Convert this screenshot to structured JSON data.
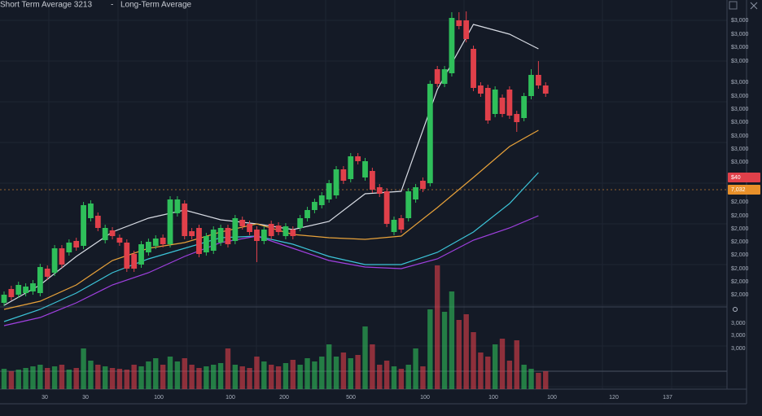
{
  "chart_data": {
    "type": "candlestick",
    "legend": [
      "Short Term Average 3213",
      "Long-Term Average"
    ],
    "up_color": "#2fbf5a",
    "down_color": "#e0404a",
    "ylim": [
      -20,
      370
    ],
    "open": [
      8,
      25,
      18,
      20,
      22,
      20,
      50,
      45,
      75,
      70,
      84,
      78,
      112,
      115,
      85,
      97,
      88,
      82,
      68,
      55,
      70,
      78,
      88,
      80,
      118,
      130,
      96,
      100,
      70,
      72,
      82,
      100,
      84,
      110,
      105,
      98,
      84,
      105,
      103,
      90,
      98,
      100,
      112,
      122,
      128,
      135,
      140,
      172,
      160,
      188,
      162,
      170,
      150,
      145,
      95,
      112,
      112,
      135,
      158,
      155,
      295,
      277,
      290,
      355,
      355,
      320,
      275,
      272,
      240,
      260,
      270,
      240,
      235,
      262,
      288,
      275
    ],
    "high": [
      22,
      29,
      34,
      32,
      36,
      56,
      54,
      79,
      79,
      86,
      88,
      132,
      134,
      119,
      104,
      101,
      92,
      86,
      72,
      84,
      87,
      91,
      92,
      139,
      139,
      134,
      100,
      104,
      94,
      102,
      104,
      104,
      116,
      114,
      109,
      102,
      102,
      109,
      107,
      106,
      102,
      116,
      126,
      136,
      144,
      159,
      176,
      176,
      192,
      192,
      186,
      174,
      154,
      149,
      114,
      116,
      149,
      154,
      162,
      281,
      299,
      299,
      365,
      365,
      366,
      324,
      279,
      276,
      274,
      264,
      274,
      244,
      266,
      295,
      305,
      279
    ],
    "low": [
      4,
      11,
      14,
      16,
      18,
      16,
      36,
      41,
      51,
      66,
      72,
      74,
      108,
      96,
      81,
      86,
      78,
      46,
      46,
      51,
      66,
      74,
      76,
      76,
      114,
      86,
      86,
      64,
      66,
      68,
      78,
      76,
      80,
      98,
      91,
      58,
      80,
      86,
      91,
      86,
      86,
      96,
      108,
      118,
      124,
      131,
      136,
      154,
      156,
      178,
      158,
      143,
      138,
      101,
      91,
      94,
      108,
      131,
      144,
      151,
      273,
      273,
      286,
      344,
      328,
      268,
      261,
      228,
      236,
      236,
      234,
      218,
      231,
      258,
      271,
      261
    ],
    "close": [
      18,
      15,
      30,
      28,
      32,
      52,
      40,
      75,
      55,
      82,
      76,
      128,
      130,
      100,
      100,
      90,
      82,
      50,
      50,
      80,
      83,
      87,
      80,
      135,
      135,
      90,
      90,
      68,
      90,
      98,
      100,
      80,
      112,
      102,
      95,
      84,
      98,
      90,
      95,
      102,
      90,
      112,
      122,
      132,
      140,
      155,
      172,
      158,
      188,
      182,
      182,
      147,
      142,
      105,
      110,
      98,
      145,
      150,
      148,
      277,
      277,
      295,
      358,
      348,
      332,
      272,
      265,
      232,
      270,
      240,
      238,
      230,
      262,
      288,
      275,
      265
    ],
    "volume_ylim": [
      0,
      160
    ],
    "volume": [
      25,
      22,
      24,
      26,
      28,
      30,
      26,
      28,
      30,
      24,
      26,
      50,
      35,
      30,
      28,
      26,
      25,
      24,
      30,
      28,
      34,
      38,
      30,
      40,
      34,
      38,
      30,
      26,
      28,
      30,
      32,
      50,
      30,
      28,
      26,
      40,
      34,
      30,
      28,
      32,
      36,
      30,
      38,
      34,
      40,
      55,
      40,
      45,
      38,
      42,
      77,
      55,
      30,
      35,
      28,
      25,
      30,
      50,
      28,
      98,
      152,
      95,
      120,
      85,
      92,
      70,
      45,
      40,
      55,
      62,
      35,
      60,
      30,
      25,
      20,
      22
    ],
    "series": [
      {
        "color": "#d8dce4",
        "x": [
          0,
          5,
          10,
          15,
          20,
          25,
          30,
          35,
          40,
          45,
          50,
          55,
          60,
          65,
          70,
          74
        ],
        "values": [
          5,
          30,
          65,
          95,
          112,
          122,
          110,
          105,
          98,
          108,
          142,
          145,
          270,
          350,
          338,
          320
        ]
      },
      {
        "color": "#e8a23a",
        "x": [
          0,
          5,
          10,
          15,
          20,
          25,
          30,
          35,
          40,
          45,
          50,
          55,
          60,
          65,
          70,
          74
        ],
        "values": [
          0,
          10,
          30,
          60,
          75,
          82,
          95,
          105,
          92,
          88,
          86,
          90,
          125,
          162,
          200,
          220
        ]
      },
      {
        "color": "#3cc4d8",
        "x": [
          0,
          5,
          10,
          15,
          20,
          25,
          30,
          35,
          40,
          45,
          50,
          55,
          60,
          65,
          70,
          74
        ],
        "values": [
          -15,
          0,
          20,
          45,
          62,
          75,
          88,
          90,
          80,
          65,
          55,
          55,
          70,
          95,
          130,
          168
        ]
      },
      {
        "color": "#a040e0",
        "x": [
          0,
          5,
          10,
          15,
          20,
          25,
          30,
          35,
          40,
          45,
          50,
          55,
          60,
          65,
          70,
          74
        ],
        "values": [
          -20,
          -10,
          8,
          30,
          45,
          65,
          82,
          90,
          75,
          60,
          52,
          50,
          62,
          85,
          100,
          115
        ]
      }
    ],
    "y_axis_labels": [
      "$3,000",
      "$3,000",
      "$3,000",
      "$3,000",
      "$3,000",
      "$3,000",
      "$3,000",
      "$3,000",
      "$3,000",
      "$3,000",
      "$3,000",
      "$2,000",
      "$2,000",
      "$2,000",
      "$2,000",
      "$2,000",
      "$2,000",
      "$2,000",
      "$2,000"
    ],
    "price_tags": [
      {
        "label": "$40",
        "color": "#e0404a"
      },
      {
        "label": "7,032",
        "color": "#e8902a"
      }
    ],
    "volume_axis_labels": [
      "3,000",
      "3,000",
      "3,000"
    ],
    "x_axis_labels": [
      "30",
      "30",
      "100",
      "100",
      "200",
      "500",
      "100",
      "100",
      "100",
      "120",
      "137"
    ]
  }
}
